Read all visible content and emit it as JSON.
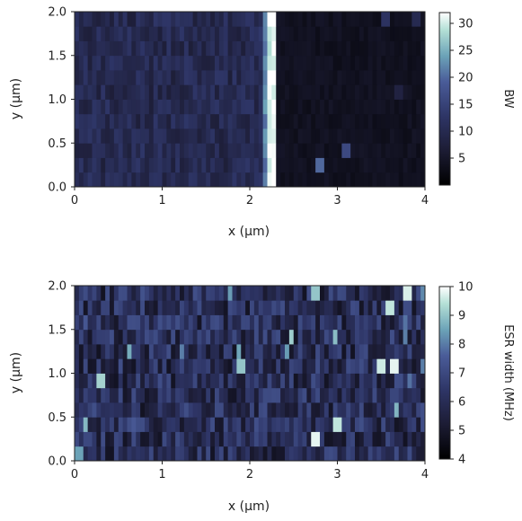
{
  "chart_data": [
    {
      "type": "heatmap",
      "xlabel": "x (μm)",
      "ylabel": "y (μm)",
      "xlim": [
        0,
        4
      ],
      "ylim": [
        0,
        2.0
      ],
      "x_ticks": [
        "0",
        "1",
        "2",
        "3",
        "4"
      ],
      "y_ticks": [
        "0.0",
        "0.5",
        "1.0",
        "1.5",
        "2.0"
      ],
      "colorbar": {
        "label": "BW",
        "range": [
          0,
          32
        ],
        "ticks": [
          "5",
          "10",
          "15",
          "20",
          "25",
          "30"
        ]
      },
      "grid": {
        "cols": 80,
        "rows": 12,
        "baseline_left": 10,
        "baseline_right": 4,
        "edge_x": 2.3,
        "edge_peak": 31,
        "features": [
          {
            "x": 2.8,
            "y": 0.25,
            "value": 20
          },
          {
            "x": 3.1,
            "y": 0.45,
            "value": 16
          },
          {
            "x": 3.55,
            "y": 1.95,
            "value": 12
          },
          {
            "x": 3.9,
            "y": 1.95,
            "value": 10
          },
          {
            "x": 3.7,
            "y": 1.1,
            "value": 8
          }
        ]
      }
    },
    {
      "type": "heatmap",
      "xlabel": "x (μm)",
      "ylabel": "y (μm)",
      "xlim": [
        0,
        4
      ],
      "ylim": [
        0,
        2.0
      ],
      "x_ticks": [
        "0",
        "1",
        "2",
        "3",
        "4"
      ],
      "y_ticks": [
        "0.0",
        "0.5",
        "1.0",
        "1.5",
        "2.0"
      ],
      "colorbar": {
        "label": "ESR width (MHz)",
        "range": [
          4,
          10
        ],
        "ticks": [
          "4",
          "5",
          "6",
          "7",
          "8",
          "9",
          "10"
        ]
      },
      "grid": {
        "cols": 80,
        "rows": 12,
        "baseline": 6,
        "features": [
          {
            "x": 2.75,
            "y": 0.2,
            "value": 9.8
          },
          {
            "x": 3.0,
            "y": 0.35,
            "value": 9.5
          },
          {
            "x": 3.5,
            "y": 1.05,
            "value": 9.6
          },
          {
            "x": 3.65,
            "y": 1.05,
            "value": 9.8
          },
          {
            "x": 3.6,
            "y": 1.75,
            "value": 9.5
          },
          {
            "x": 3.8,
            "y": 1.95,
            "value": 9.7
          },
          {
            "x": 2.75,
            "y": 1.95,
            "value": 9.0
          },
          {
            "x": 1.9,
            "y": 1.05,
            "value": 9.0
          },
          {
            "x": 0.3,
            "y": 0.95,
            "value": 9.2
          },
          {
            "x": 0.05,
            "y": 0.05,
            "value": 8.5
          }
        ]
      }
    }
  ]
}
